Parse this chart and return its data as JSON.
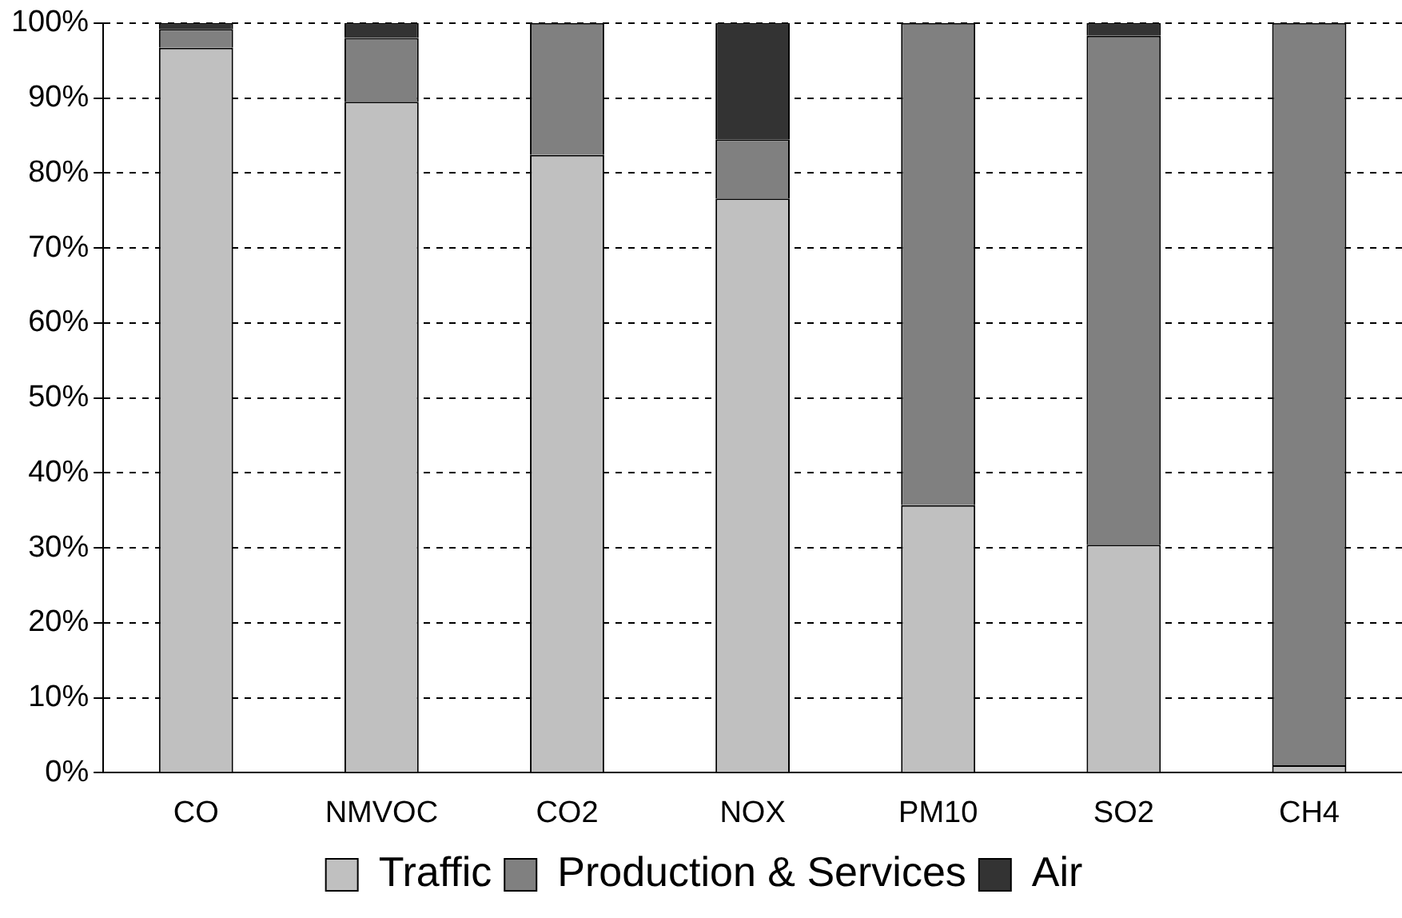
{
  "chart_data": {
    "type": "bar",
    "stacked": true,
    "categories": [
      "CO",
      "NMVOC",
      "CO2",
      "NOX",
      "PM10",
      "SO2",
      "CH4"
    ],
    "series": [
      {
        "name": "Traffic",
        "color": "#c0c0c0",
        "values": [
          96.7,
          89.5,
          82.4,
          76.6,
          35.7,
          30.4,
          1
        ]
      },
      {
        "name": "Production & Services",
        "color": "#808080",
        "values": [
          2.5,
          8.5,
          17.6,
          7.9,
          64.3,
          67.9,
          99
        ]
      },
      {
        "name": "Air",
        "color": "#333333",
        "values": [
          0.8,
          2,
          0,
          15.5,
          0,
          1.7,
          0
        ]
      }
    ],
    "ylim": [
      0,
      100
    ],
    "yticks": [
      {
        "value": 0,
        "label": "0%"
      },
      {
        "value": 10,
        "label": "10%"
      },
      {
        "value": 20,
        "label": "20%"
      },
      {
        "value": 30,
        "label": "30%"
      },
      {
        "value": 40,
        "label": "40%"
      },
      {
        "value": 50,
        "label": "50%"
      },
      {
        "value": 60,
        "label": "60%"
      },
      {
        "value": 70,
        "label": "70%"
      },
      {
        "value": 80,
        "label": "80%"
      },
      {
        "value": 90,
        "label": "90%"
      },
      {
        "value": 100,
        "label": "100%"
      }
    ],
    "grid": "y",
    "legend": "bottom"
  }
}
